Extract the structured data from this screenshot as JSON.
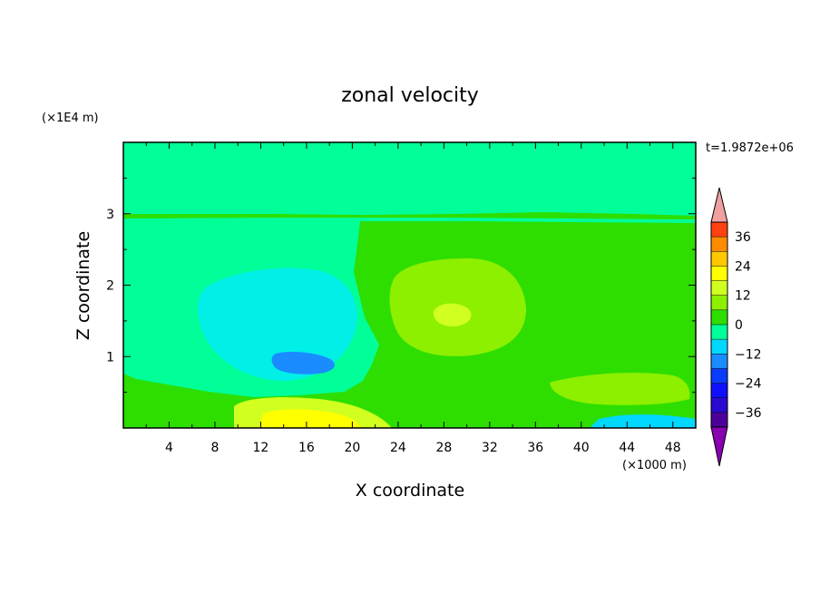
{
  "chart_data": {
    "type": "heatmap",
    "title": "zonal velocity",
    "xlabel": "X coordinate",
    "ylabel": "Z coordinate",
    "x_unit": "(×1000 m)",
    "y_unit": "(×1E4 m)",
    "time_label": "t=1.9872e+06",
    "xlim": [
      0,
      50
    ],
    "ylim": [
      0,
      4
    ],
    "x_ticks": [
      "4",
      "8",
      "12",
      "16",
      "20",
      "24",
      "28",
      "32",
      "36",
      "40",
      "44",
      "48"
    ],
    "x_tick_values": [
      4,
      8,
      12,
      16,
      20,
      24,
      28,
      32,
      36,
      40,
      44,
      48
    ],
    "y_ticks": [
      "1",
      "2",
      "3"
    ],
    "y_tick_values": [
      1,
      2,
      3
    ],
    "colorbar": {
      "tick_labels": [
        "36",
        "24",
        "12",
        "0",
        "−12",
        "−24",
        "−36"
      ],
      "tick_values": [
        36,
        24,
        12,
        0,
        -12,
        -24,
        -36
      ],
      "levels": [
        -42,
        -36,
        -30,
        -24,
        -18,
        -12,
        -6,
        0,
        6,
        12,
        18,
        24,
        30,
        36,
        42
      ],
      "colors": [
        "#4a0099",
        "#2a0ad0",
        "#1010ff",
        "#0a3cff",
        "#1a8cff",
        "#00d8ff",
        "#00ff99",
        "#2ede00",
        "#8cf000",
        "#d0ff20",
        "#ffff00",
        "#ffc800",
        "#ff8c00",
        "#ff4010",
        "#f0a0a0"
      ],
      "under_color": "#8800b0",
      "over_color": "#f0a0a0"
    },
    "regions": [
      {
        "label": "background",
        "value": 2
      },
      {
        "label": "upper-layer",
        "value": -3
      },
      {
        "label": "central-weak-negative",
        "value": -4
      },
      {
        "label": "negative-jet-cell",
        "value": -9
      },
      {
        "label": "negative-jet-core",
        "value": -15
      },
      {
        "label": "positive-cell",
        "value": 6
      },
      {
        "label": "positive-core",
        "value": 10
      },
      {
        "label": "surface-jet",
        "value": 8
      },
      {
        "label": "surface-jet-core",
        "value": 14
      },
      {
        "label": "right-surface-positive",
        "value": 6
      },
      {
        "label": "right-surface-negative",
        "value": -10
      }
    ]
  }
}
